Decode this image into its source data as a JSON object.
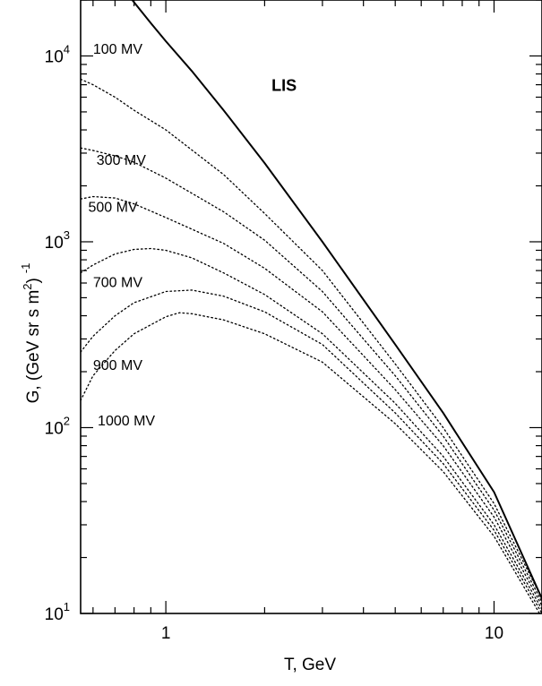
{
  "chart_data": {
    "type": "line",
    "x_scale": "log",
    "y_scale": "log",
    "xlim": [
      0.55,
      14
    ],
    "ylim": [
      10,
      20000
    ],
    "xlabel": "T, GeV",
    "ylabel": "G, (GeV sr s m²)⁻¹",
    "ylabel_parts": {
      "main": "G, (GeV sr s m",
      "sup2": "2",
      "close": ")",
      "supm1": "-1"
    },
    "x_ticks": [
      {
        "value": 1,
        "label": "1"
      },
      {
        "value": 10,
        "label": "10"
      }
    ],
    "y_ticks": [
      {
        "value": 10,
        "base": "10",
        "exp": "1"
      },
      {
        "value": 100,
        "base": "10",
        "exp": "2"
      },
      {
        "value": 1000,
        "base": "10",
        "exp": "3"
      },
      {
        "value": 10000,
        "base": "10",
        "exp": "4"
      }
    ],
    "series": [
      {
        "name": "LIS",
        "style": "solid",
        "label_at": [
          2.1,
          6500
        ],
        "label_bold": true,
        "x": [
          0.79,
          0.9,
          1.0,
          1.2,
          1.5,
          2.0,
          3.0,
          5.0,
          7.0,
          10.0,
          14.0
        ],
        "y": [
          20000,
          15000,
          12000,
          8300,
          5100,
          2650,
          1000,
          280,
          120,
          45,
          12
        ]
      },
      {
        "name": "100 MV",
        "style": "dotted",
        "label_at": [
          0.6,
          10300
        ],
        "x": [
          0.55,
          0.6,
          0.7,
          0.8,
          1.0,
          1.5,
          2.0,
          3.0,
          5.0,
          7.0,
          10.0,
          14.0
        ],
        "y": [
          7500,
          7000,
          6000,
          5100,
          4000,
          2300,
          1420,
          700,
          220,
          100,
          39,
          12
        ]
      },
      {
        "name": "300 MV",
        "style": "dotted",
        "label_at": [
          0.615,
          2600
        ],
        "x": [
          0.55,
          0.6,
          0.7,
          0.8,
          1.0,
          1.5,
          2.0,
          3.0,
          5.0,
          7.0,
          10.0,
          14.0
        ],
        "y": [
          3200,
          3100,
          2900,
          2680,
          2200,
          1450,
          1020,
          540,
          190,
          90,
          36,
          11.5
        ]
      },
      {
        "name": "500 MV",
        "style": "dotted",
        "label_at": [
          0.58,
          1450
        ],
        "x": [
          0.55,
          0.6,
          0.7,
          0.8,
          1.0,
          1.5,
          2.0,
          3.0,
          5.0,
          7.0,
          10.0,
          14.0
        ],
        "y": [
          1700,
          1750,
          1720,
          1600,
          1350,
          980,
          720,
          420,
          160,
          80,
          33,
          11
        ]
      },
      {
        "name": "700 MV",
        "style": "dotted",
        "label_at": [
          0.6,
          570
        ],
        "x": [
          0.55,
          0.6,
          0.7,
          0.8,
          0.9,
          1.0,
          1.2,
          1.5,
          2.0,
          3.0,
          5.0,
          7.0,
          10.0,
          14.0
        ],
        "y": [
          680,
          750,
          860,
          910,
          920,
          900,
          820,
          680,
          520,
          320,
          135,
          70,
          30,
          10.5
        ]
      },
      {
        "name": "900 MV",
        "style": "dotted",
        "label_at": [
          0.6,
          205
        ],
        "x": [
          0.55,
          0.6,
          0.7,
          0.8,
          1.0,
          1.2,
          1.5,
          2.0,
          3.0,
          5.0,
          7.0,
          10.0,
          14.0
        ],
        "y": [
          255,
          310,
          400,
          470,
          540,
          550,
          510,
          420,
          280,
          120,
          64,
          28,
          10
        ]
      },
      {
        "name": "1000 MV",
        "style": "dotted",
        "label_at": [
          0.62,
          103
        ],
        "x": [
          0.55,
          0.6,
          0.7,
          0.8,
          1.0,
          1.1,
          1.2,
          1.5,
          2.0,
          3.0,
          5.0,
          7.0,
          10.0,
          14.0
        ],
        "y": [
          140,
          190,
          260,
          320,
          395,
          415,
          410,
          380,
          320,
          225,
          105,
          58,
          26,
          9.5
        ]
      }
    ]
  }
}
